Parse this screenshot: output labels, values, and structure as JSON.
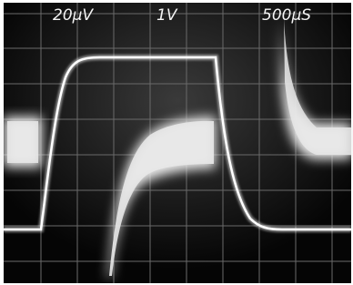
{
  "labels": {
    "channel_1": "20μV",
    "channel_2": "1V",
    "timebase": "500μS"
  }
}
